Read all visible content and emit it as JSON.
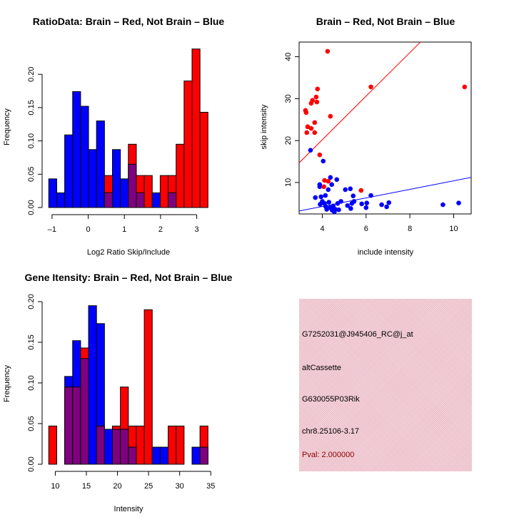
{
  "chart_data": [
    {
      "type": "bar",
      "subtype": "overlapping-histogram",
      "title": "RatioData: Brain – Red, Not Brain – Blue",
      "xlabel": "Log2 Ratio Skip/Include",
      "ylabel": "Frequency",
      "xlim": [
        -1.09,
        3.31
      ],
      "ylim": [
        0,
        0.24
      ],
      "x_ticks": [
        -1,
        0,
        1,
        2,
        3
      ],
      "y_ticks": [
        "0.00",
        "0.05",
        "0.10",
        "0.15",
        "0.20"
      ],
      "bin_start": -1.09,
      "bin_width": 0.22,
      "overlap_color": "#800080",
      "series": [
        {
          "name": "Not Brain",
          "color": "#0000ff",
          "values": [
            0.043,
            0.022,
            0.109,
            0.174,
            0.152,
            0.087,
            0.13,
            0.022,
            0.087,
            0.043,
            0.065,
            0.022,
            0,
            0.022,
            0,
            0.022,
            0,
            0,
            0,
            0
          ]
        },
        {
          "name": "Brain",
          "color": "#ff0000",
          "values": [
            0,
            0,
            0,
            0,
            0,
            0,
            0,
            0.048,
            0,
            0,
            0.095,
            0.048,
            0.048,
            0,
            0.048,
            0.048,
            0.095,
            0.19,
            0.238,
            0.143
          ]
        }
      ]
    },
    {
      "type": "scatter",
      "title": "Brain – Red, Not Brain – Blue",
      "xlabel": "include intensity",
      "ylabel": "skip intensity",
      "xlim": [
        2.94,
        10.8
      ],
      "ylim": [
        2.5,
        43.5
      ],
      "x_ticks": [
        4,
        6,
        8,
        10
      ],
      "y_ticks": [
        10,
        20,
        30,
        40
      ],
      "series": [
        {
          "name": "Brain",
          "color": "#ff0000",
          "points": [
            [
              4.24,
              41.3
            ],
            [
              3.78,
              32.3
            ],
            [
              3.72,
              30.4
            ],
            [
              3.55,
              29.6
            ],
            [
              3.49,
              28.9
            ],
            [
              3.75,
              29.2
            ],
            [
              3.23,
              27.2
            ],
            [
              3.26,
              26.7
            ],
            [
              4.37,
              25.8
            ],
            [
              6.22,
              32.8
            ],
            [
              3.65,
              24.3
            ],
            [
              3.33,
              23.3
            ],
            [
              3.49,
              22.9
            ],
            [
              3.29,
              21.9
            ],
            [
              3.65,
              21.9
            ],
            [
              3.88,
              16.6
            ],
            [
              10.5,
              32.8
            ],
            [
              4.1,
              10.5
            ],
            [
              4.27,
              10.3
            ],
            [
              4.07,
              9.0
            ],
            [
              5.77,
              8.1
            ]
          ],
          "fit_line": {
            "slope": 5.2,
            "intercept": -0.6
          }
        },
        {
          "name": "Not Brain",
          "color": "#0000ff",
          "points": [
            [
              3.46,
              17.7
            ],
            [
              4.04,
              15.1
            ],
            [
              4.37,
              11.2
            ],
            [
              4.66,
              10.7
            ],
            [
              3.88,
              9.5
            ],
            [
              3.88,
              9.0
            ],
            [
              4.43,
              9.5
            ],
            [
              4.27,
              8.3
            ],
            [
              5.05,
              8.3
            ],
            [
              5.28,
              8.5
            ],
            [
              3.68,
              6.4
            ],
            [
              3.94,
              6.6
            ],
            [
              4.14,
              6.9
            ],
            [
              5.41,
              6.8
            ],
            [
              6.22,
              6.9
            ],
            [
              3.9,
              4.8
            ],
            [
              4.0,
              5.5
            ],
            [
              4.1,
              5.0
            ],
            [
              4.15,
              4.3
            ],
            [
              4.2,
              3.6
            ],
            [
              4.3,
              5.3
            ],
            [
              4.35,
              4.0
            ],
            [
              4.45,
              3.4
            ],
            [
              4.5,
              4.4
            ],
            [
              4.55,
              3.0
            ],
            [
              4.6,
              3.6
            ],
            [
              4.7,
              5.0
            ],
            [
              4.75,
              3.5
            ],
            [
              4.85,
              5.5
            ],
            [
              5.15,
              4.5
            ],
            [
              5.3,
              3.8
            ],
            [
              5.35,
              5.0
            ],
            [
              5.45,
              5.5
            ],
            [
              5.8,
              4.9
            ],
            [
              6.03,
              5.1
            ],
            [
              6.0,
              4.0
            ],
            [
              6.71,
              4.7
            ],
            [
              6.94,
              4.2
            ],
            [
              7.04,
              5.2
            ],
            [
              9.51,
              4.7
            ],
            [
              10.23,
              5.1
            ]
          ],
          "fit_line": {
            "slope": 1.02,
            "intercept": 0.2
          }
        }
      ]
    },
    {
      "type": "bar",
      "subtype": "overlapping-histogram",
      "title": "Gene Itensity: Brain – Red, Not Brain – Blue",
      "xlabel": "Intensity",
      "ylabel": "Frequency",
      "xlim": [
        8.95,
        34.55
      ],
      "ylim": [
        0,
        0.2
      ],
      "x_ticks": [
        10,
        15,
        20,
        25,
        30,
        35
      ],
      "y_ticks": [
        "0.00",
        "0.05",
        "0.10",
        "0.15",
        "0.20"
      ],
      "bin_start": 8.95,
      "bin_width": 1.28,
      "overlap_color": "#800080",
      "series": [
        {
          "name": "Not Brain",
          "color": "#0000ff",
          "values": [
            0,
            0,
            0.108,
            0.152,
            0.13,
            0.195,
            0.173,
            0.043,
            0.043,
            0.043,
            0.021,
            0,
            0,
            0.021,
            0.021,
            0,
            0,
            0,
            0.021,
            0.021
          ]
        },
        {
          "name": "Brain",
          "color": "#ff0000",
          "values": [
            0.047,
            0,
            0.095,
            0.095,
            0.143,
            0,
            0.047,
            0,
            0.047,
            0.095,
            0.047,
            0.047,
            0.19,
            0,
            0,
            0.047,
            0.047,
            0,
            0,
            0.047
          ]
        }
      ]
    }
  ],
  "info_panel": {
    "probe_id": "G7252031@J945406_RC@j_at",
    "event_type": "altCassette",
    "gene": "G630055P03Rik",
    "location": "chr8.25106-3.17",
    "pval": "Pval: 2.000000"
  }
}
